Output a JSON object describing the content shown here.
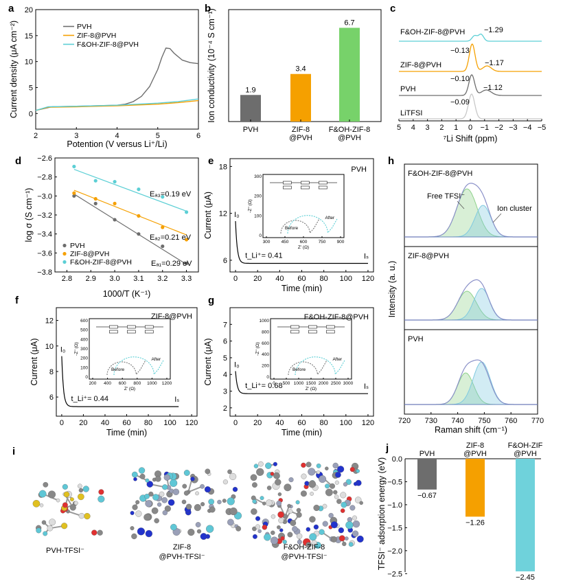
{
  "colors": {
    "pvh": "#6d6d6d",
    "zif": "#f5a000",
    "fzif": "#5ccfd5",
    "green": "#77d26a",
    "cyan": "#6fd2db",
    "fit_green": "#8ed18a",
    "fit_cyan": "#7fc9e0",
    "envelope": "#8a90c8"
  },
  "panel_a": {
    "letter": "a",
    "type": "line",
    "xlabel": "Potention (V versus Li⁺/Li)",
    "ylabel": "Current density (μA cm⁻²)",
    "xlim": [
      2,
      6
    ],
    "ylim": [
      -3,
      20
    ],
    "xticks": [
      "2",
      "3",
      "4",
      "5",
      "6"
    ],
    "yticks": [
      "0",
      "5",
      "10",
      "15",
      "20"
    ],
    "legend": [
      "PVH",
      "ZIF-8@PVH",
      "F&OH-ZIF-8@PVH"
    ],
    "series": [
      {
        "name": "PVH",
        "x": [
          2.0,
          2.4,
          3.0,
          3.5,
          4.0,
          4.2,
          4.4,
          4.6,
          4.8,
          5.0,
          5.1,
          5.2,
          5.3,
          5.4,
          5.6,
          5.8,
          6.0
        ],
        "y": [
          0.6,
          1.3,
          1.4,
          1.5,
          1.6,
          1.8,
          2.3,
          3.3,
          5.2,
          8.5,
          10.8,
          12.6,
          12.5,
          11.6,
          10.3,
          9.8,
          9.6
        ]
      },
      {
        "name": "ZIF-8@PVH",
        "x": [
          2.0,
          2.3,
          3.0,
          4.0,
          5.0,
          5.5,
          6.0
        ],
        "y": [
          0.6,
          1.2,
          1.3,
          1.5,
          1.8,
          2.1,
          2.5
        ]
      },
      {
        "name": "F&OH-ZIF-8@PVH",
        "x": [
          2.0,
          2.3,
          3.0,
          4.0,
          5.0,
          5.5,
          6.0
        ],
        "y": [
          0.6,
          1.3,
          1.4,
          1.6,
          2.0,
          2.3,
          2.8
        ]
      }
    ]
  },
  "panel_b": {
    "letter": "b",
    "type": "bar",
    "ylabel": "Ion conductivity (10⁻⁴ S cm⁻¹)",
    "ylim": [
      0,
      8
    ],
    "categories": [
      [
        "PVH"
      ],
      [
        "ZIF-8",
        "@PVH"
      ],
      [
        "F&OH-ZIF-8",
        "@PVH"
      ]
    ],
    "values": [
      1.9,
      3.4,
      6.7
    ],
    "labels": [
      "1.9",
      "3.4",
      "6.7"
    ]
  },
  "panel_c": {
    "letter": "c",
    "type": "line",
    "xlabel": "⁷Li Shift (ppm)",
    "xlim": [
      5,
      -5
    ],
    "xticks": [
      "5",
      "4",
      "3",
      "2",
      "1",
      "0",
      "−1",
      "−2",
      "−3",
      "−4",
      "−5"
    ],
    "traces": [
      {
        "name": "F&OH-ZIF-8@PVH",
        "peaks": [
          "−1.29"
        ]
      },
      {
        "name": "ZIF-8@PVH",
        "peaks": [
          "−0.13",
          "−1.17"
        ]
      },
      {
        "name": "PVH",
        "peaks": [
          "−0.10",
          "−1.12"
        ]
      },
      {
        "name": "LiTFSI",
        "peaks": [
          "−0.09"
        ]
      }
    ]
  },
  "panel_d": {
    "letter": "d",
    "type": "scatter",
    "xlabel": "1000/T (K⁻¹)",
    "ylabel": "log σ (S cm⁻¹)",
    "xlim": [
      2.75,
      3.35
    ],
    "ylim": [
      -3.8,
      -2.6
    ],
    "xticks": [
      "2.8",
      "2.9",
      "3.0",
      "3.1",
      "3.2",
      "3.3"
    ],
    "yticks": [
      "−2.6",
      "−2.8",
      "−3.0",
      "−3.2",
      "−3.4",
      "−3.6",
      "−3.8"
    ],
    "legend": [
      "PVH",
      "ZIF-8@PVH",
      "F&OH-ZIF-8@PVH"
    ],
    "x": [
      2.83,
      2.92,
      3.0,
      3.1,
      3.2,
      3.3
    ],
    "series": [
      {
        "name": "PVH",
        "y": [
          -3.0,
          -3.08,
          -3.25,
          -3.4,
          -3.53,
          -3.71
        ],
        "fit": [
          -2.98,
          -3.72
        ],
        "ea": "Eₐ₁=0.29 eV"
      },
      {
        "name": "ZIF-8@PVH",
        "y": [
          -2.97,
          -3.03,
          -3.08,
          -3.21,
          -3.33,
          -3.46
        ],
        "fit": [
          -2.94,
          -3.41
        ],
        "ea": "Eₐ₂=0.21 eV"
      },
      {
        "name": "F&OH-ZIF-8@PVH",
        "y": [
          -2.69,
          -2.84,
          -2.85,
          -2.93,
          -3.01,
          -3.17
        ],
        "fit": [
          -2.72,
          -3.16
        ],
        "ea": "Eₐ₃=0.19 eV"
      }
    ]
  },
  "panel_e": {
    "letter": "e",
    "type": "line",
    "title": "PVH",
    "xlabel": "Time (min)",
    "ylabel": "Current (μA)",
    "xlim": [
      -5,
      125
    ],
    "ylim": [
      4.5,
      19
    ],
    "xticks": [
      "0",
      "20",
      "40",
      "60",
      "80",
      "100",
      "120"
    ],
    "yticks": [
      "6",
      "12",
      "18"
    ],
    "i0": "I₀",
    "is": "Iₛ",
    "tli": "t_Li⁺= 0.41",
    "steady": 5.6,
    "start": 11.0,
    "end_time": 120,
    "inset": {
      "xlabel": "Z' (Ω)",
      "ylabel": "-Z'' (Ω)",
      "xticks": [
        "300",
        "450",
        "600",
        "750",
        "900"
      ],
      "yticks": [
        "0",
        "100",
        "200",
        "300"
      ],
      "before": "Before",
      "after": "After"
    }
  },
  "panel_f": {
    "letter": "f",
    "type": "line",
    "title": "ZIF-8@PVH",
    "xlabel": "Time (min)",
    "ylabel": "Current (μA)",
    "xlim": [
      -5,
      125
    ],
    "ylim": [
      4.5,
      13
    ],
    "xticks": [
      "0",
      "20",
      "40",
      "60",
      "80",
      "100",
      "120"
    ],
    "yticks": [
      "6",
      "8",
      "10",
      "12"
    ],
    "i0": "I₀",
    "is": "Iₛ",
    "tli": "t_Li⁺= 0.44",
    "steady": 5.25,
    "start": 9.2,
    "end_time": 108,
    "inset": {
      "xlabel": "Z' (Ω)",
      "ylabel": "-Z'' (Ω)",
      "xticks": [
        "200",
        "400",
        "600",
        "800",
        "1000",
        "1200"
      ],
      "yticks": [
        "0",
        "100",
        "200",
        "300",
        "400",
        "500",
        "600"
      ],
      "before": "Before",
      "after": "After"
    }
  },
  "panel_g": {
    "letter": "g",
    "type": "line",
    "title": "F&OH-ZIF-8@PVH",
    "xlabel": "Time (min)",
    "ylabel": "Current (μA)",
    "xlim": [
      -5,
      125
    ],
    "ylim": [
      1.5,
      8
    ],
    "xticks": [
      "0",
      "20",
      "40",
      "60",
      "80",
      "100",
      "120"
    ],
    "yticks": [
      "2",
      "3",
      "4",
      "5",
      "6",
      "7"
    ],
    "i0": "I₀",
    "is": "Iₛ",
    "tli": "t_Li⁺= 0.68",
    "steady": 2.85,
    "start": 4.2,
    "end_time": 120,
    "inset": {
      "xlabel": "Z' (Ω)",
      "ylabel": "-Z'' (Ω)",
      "xticks": [
        "0",
        "500",
        "1000",
        "1500",
        "2000",
        "2500",
        "3000"
      ],
      "yticks": [
        "0",
        "200",
        "400",
        "600",
        "800",
        "1000"
      ],
      "before": "Before",
      "after": "After"
    }
  },
  "panel_h": {
    "letter": "h",
    "type": "area",
    "xlabel": "Raman shift (cm⁻¹)",
    "ylabel": "Intensity (a. u.)",
    "xlim": [
      720,
      770
    ],
    "xticks": [
      "720",
      "730",
      "740",
      "750",
      "760",
      "770"
    ],
    "subplots": [
      {
        "name": "F&OH-ZIF-8@PVH",
        "free_label": "Free TFSI⁻",
        "cluster_label": "Ion cluster"
      },
      {
        "name": "ZIF-8@PVH"
      },
      {
        "name": "PVH"
      }
    ]
  },
  "panel_i": {
    "letter": "i",
    "labels": [
      [
        "PVH-TFSI⁻"
      ],
      [
        "ZIF-8",
        "@PVH-TFSI⁻"
      ],
      [
        "F&OH-ZIF-8",
        "@PVH-TFSI⁻"
      ]
    ]
  },
  "panel_j": {
    "letter": "j",
    "type": "bar",
    "ylabel": "TFSI⁻ adsorption energy (eV)",
    "ylim": [
      -2.6,
      0
    ],
    "yticks": [
      "0.0",
      "−0.5",
      "−1.0",
      "−1.5",
      "−2.0",
      "−2.5"
    ],
    "categories": [
      [
        "PVH"
      ],
      [
        "ZIF-8",
        "@PVH"
      ],
      [
        "F&OH-ZIF",
        "@PVH"
      ]
    ],
    "values": [
      -0.67,
      -1.26,
      -2.45
    ],
    "labels": [
      "−0.67",
      "−1.26",
      "−2.45"
    ]
  }
}
